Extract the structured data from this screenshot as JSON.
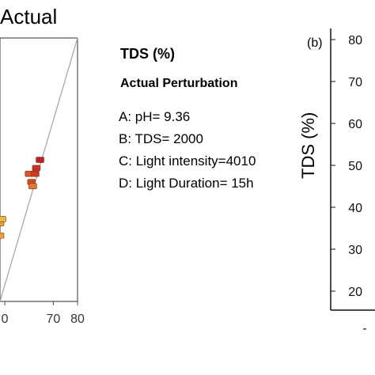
{
  "chart_data": [
    {
      "type": "scatter",
      "title": "Actual",
      "x_ticks": [
        "0",
        "70",
        "80"
      ],
      "xlim": [
        48,
        80
      ],
      "ylim": [
        48,
        80
      ],
      "points": [
        {
          "x": 48.0,
          "y": 57.5,
          "color": "#e6a23c"
        },
        {
          "x": 48.0,
          "y": 56.0,
          "color": "#e6a23c"
        },
        {
          "x": 48.8,
          "y": 58.0,
          "color": "#e8b84a"
        },
        {
          "x": 60.0,
          "y": 63.5,
          "color": "#d9542a"
        },
        {
          "x": 61.0,
          "y": 62.5,
          "color": "#d84b28"
        },
        {
          "x": 61.5,
          "y": 62.0,
          "color": "#e07a30"
        },
        {
          "x": 62.5,
          "y": 63.5,
          "color": "#d23a22"
        },
        {
          "x": 63.0,
          "y": 64.2,
          "color": "#c9302c"
        },
        {
          "x": 64.5,
          "y": 65.2,
          "color": "#b8242a"
        }
      ],
      "reference_line": {
        "x": [
          48,
          80
        ],
        "y": [
          48,
          80
        ],
        "color": "#a8a8a8"
      }
    },
    {
      "type": "scatter",
      "panel_label": "(b)",
      "ylabel": "TDS (%)",
      "y_ticks": [
        "20",
        "30",
        "40",
        "50",
        "60",
        "70",
        "80"
      ],
      "x_ticks_partial": [
        "-"
      ],
      "ylim": [
        17,
        82
      ]
    }
  ],
  "legend": {
    "title": "TDS (%)",
    "subtitle": "Actual Perturbation",
    "items": [
      "A: pH= 9.36",
      "B: TDS= 2000",
      "C: Light intensity=4010",
      "D: Light Duration= 15h"
    ]
  },
  "colors": {
    "axis": "#555555",
    "reference_line": "#a8a8a8",
    "marker_low": "#e6a23c",
    "marker_high": "#b8242a"
  }
}
